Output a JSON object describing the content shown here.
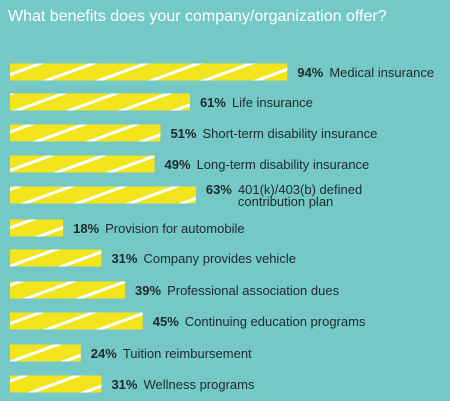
{
  "title": "What benefits does your company/organization offer?",
  "colors": {
    "background": "#74c8c6",
    "bar": "#f2e51c",
    "stripe": "#ffffff",
    "text": "#1f2a2c",
    "title": "#ffffff"
  },
  "chart_data": {
    "type": "bar",
    "orientation": "horizontal",
    "unit": "%",
    "xlim": [
      0,
      100
    ],
    "grid": false,
    "legend": "none",
    "categories": [
      "Medical insurance",
      "Life insurance",
      "Short-term disability insurance",
      "Long-term disability insurance",
      "401(k)/403(b) defined contribution plan",
      "Provision for automobile",
      "Company provides vehicle",
      "Professional association dues",
      "Continuing education programs",
      "Tuition reimbursement",
      "Wellness programs"
    ],
    "category_lines": [
      [
        "Medical insurance"
      ],
      [
        "Life insurance"
      ],
      [
        "Short-term disability insurance"
      ],
      [
        "Long-term disability insurance"
      ],
      [
        "401(k)/403(b) defined",
        "contribution plan"
      ],
      [
        "Provision for automobile"
      ],
      [
        "Company provides vehicle"
      ],
      [
        "Professional association dues"
      ],
      [
        "Continuing education programs"
      ],
      [
        "Tuition reimbursement"
      ],
      [
        "Wellness programs"
      ]
    ],
    "values": [
      94,
      61,
      51,
      49,
      63,
      18,
      31,
      39,
      45,
      24,
      31
    ],
    "value_labels": [
      "94%",
      "61%",
      "51%",
      "49%",
      "63%",
      "18%",
      "31%",
      "39%",
      "45%",
      "24%",
      "31%"
    ]
  }
}
